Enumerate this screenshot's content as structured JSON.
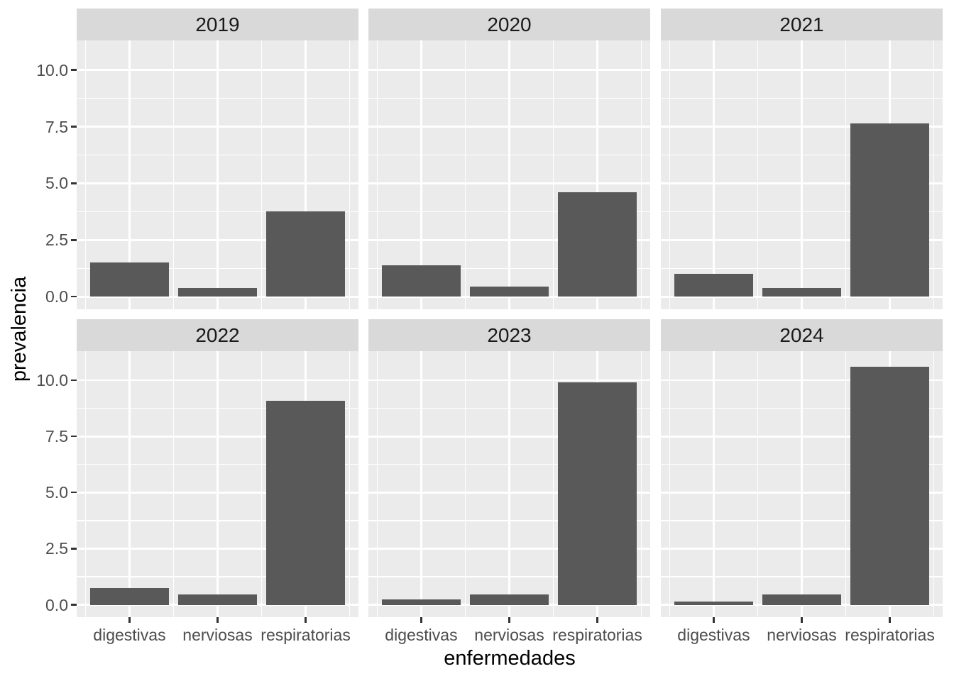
{
  "chart_data": {
    "type": "bar",
    "title": "",
    "xlabel": "enfermedades",
    "ylabel": "prevalencia",
    "categories": [
      "digestivas",
      "nerviosas",
      "respiratorias"
    ],
    "facet_variable_values": [
      "2019",
      "2020",
      "2021",
      "2022",
      "2023",
      "2024"
    ],
    "facets": [
      {
        "label": "2019",
        "values": [
          1.5,
          0.4,
          3.75
        ]
      },
      {
        "label": "2020",
        "values": [
          1.4,
          0.45,
          4.6
        ]
      },
      {
        "label": "2021",
        "values": [
          1.0,
          0.4,
          7.65
        ]
      },
      {
        "label": "2022",
        "values": [
          0.75,
          0.45,
          9.1
        ]
      },
      {
        "label": "2023",
        "values": [
          0.25,
          0.45,
          9.9
        ]
      },
      {
        "label": "2024",
        "values": [
          0.15,
          0.45,
          10.6
        ]
      }
    ],
    "y_tick_labels": [
      "0.0",
      "2.5",
      "5.0",
      "7.5",
      "10.0"
    ],
    "y_tick_values": [
      0,
      2.5,
      5,
      7.5,
      10
    ],
    "y_minor_values": [
      1.25,
      3.75,
      6.25,
      8.75
    ],
    "ylim": [
      -0.55,
      11.3
    ],
    "bar_width_fraction": 0.9,
    "grid": "white major and minor gridlines on gray panel",
    "legend_position": "none",
    "facet_layout": {
      "rows": 2,
      "cols": 3
    }
  },
  "colors": {
    "figure_bg": "#FFFFFF",
    "panel_bg": "#EBEBEB",
    "strip_bg": "#D9D9D9",
    "bar_fill": "#595959",
    "gridline": "#FFFFFF",
    "axis_text": "#4D4D4D",
    "axis_title": "#000000",
    "strip_text": "#1A1A1A",
    "tick_mark": "#333333"
  }
}
